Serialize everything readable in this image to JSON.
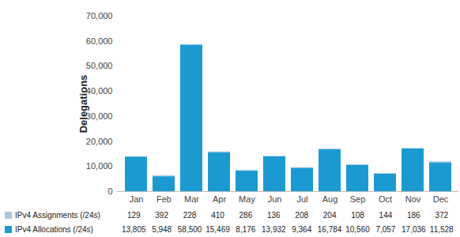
{
  "chart_data": {
    "type": "bar",
    "stacked": true,
    "grid": false,
    "ylabel": "Delegations",
    "categories": [
      "Jan",
      "Feb",
      "Mar",
      "Apr",
      "May",
      "Jun",
      "Jul",
      "Aug",
      "Sep",
      "Oct",
      "Nov",
      "Dec"
    ],
    "series": [
      {
        "name": "IPv4 Assignments (/24s)",
        "color": "#a6c8e0",
        "values": [
          129,
          392,
          228,
          410,
          286,
          136,
          208,
          204,
          108,
          144,
          186,
          372
        ]
      },
      {
        "name": "IPv4 Allocations (/24s)",
        "color": "#1b9ad2",
        "values": [
          13805,
          5948,
          58500,
          15469,
          8176,
          13932,
          9364,
          16784,
          10560,
          7057,
          17036,
          11528
        ],
        "value_labels": [
          "13,805",
          "5,948",
          "58,500",
          "15,469",
          "8,176",
          "13,932",
          "9,364",
          "16,784",
          "10,560",
          "7,057",
          "17,036",
          "11,528"
        ]
      }
    ],
    "ylim": [
      0,
      70000
    ],
    "yticks": [
      0,
      {
        "value": 10000,
        "label": "10,000"
      },
      {
        "value": 20000,
        "label": "20,000"
      },
      {
        "value": 30000,
        "label": "30,000"
      },
      {
        "value": 40000,
        "label": "40,000"
      },
      {
        "value": 50000,
        "label": "50,000"
      },
      {
        "value": 60000,
        "label": "60,000"
      },
      {
        "value": 70000,
        "label": "70,000"
      }
    ]
  }
}
